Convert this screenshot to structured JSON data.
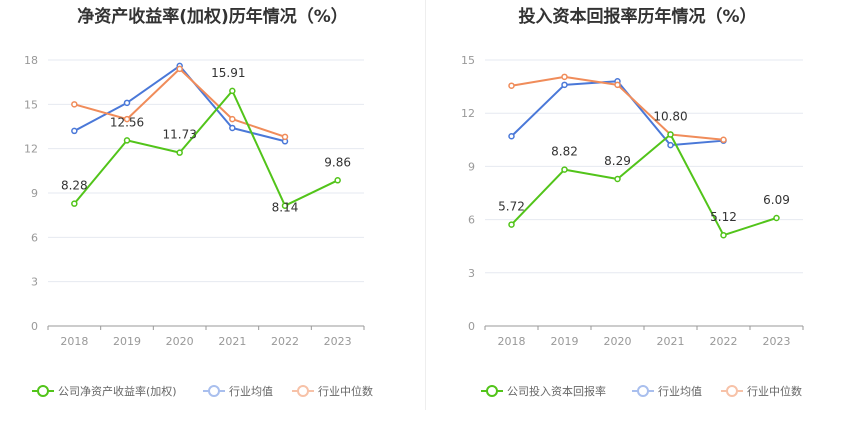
{
  "chart_data": [
    {
      "type": "line",
      "title": "净资产收益率(加权)历年情况（%）",
      "categories": [
        "2018",
        "2019",
        "2020",
        "2021",
        "2022",
        "2023"
      ],
      "ylim": [
        0,
        18
      ],
      "yticks": [
        0,
        3,
        6,
        9,
        12,
        15,
        18
      ],
      "grid": true,
      "legend_position": "bottom",
      "series": [
        {
          "name": "公司净资产收益率(加权)",
          "color": "#52c41a",
          "labels": true,
          "values": [
            8.28,
            12.56,
            11.73,
            15.91,
            8.14,
            9.86
          ],
          "value_labels": [
            "8.28",
            "12.56",
            "11.73",
            "15.91",
            "8.14",
            "9.86"
          ]
        },
        {
          "name": "行业均值",
          "color": "#4a78d8",
          "values": [
            13.2,
            15.1,
            17.6,
            13.4,
            12.5,
            null
          ]
        },
        {
          "name": "行业中位数",
          "color": "#f08c5a",
          "values": [
            15.0,
            14.0,
            17.4,
            14.0,
            12.8,
            null
          ]
        }
      ]
    },
    {
      "type": "line",
      "title": "投入资本回报率历年情况（%）",
      "categories": [
        "2018",
        "2019",
        "2020",
        "2021",
        "2022",
        "2023"
      ],
      "ylim": [
        0,
        15
      ],
      "yticks": [
        0,
        3,
        6,
        9,
        12,
        15
      ],
      "grid": true,
      "legend_position": "bottom",
      "series": [
        {
          "name": "公司投入资本回报率",
          "color": "#52c41a",
          "labels": true,
          "values": [
            5.72,
            8.82,
            8.29,
            10.8,
            5.12,
            6.09
          ],
          "value_labels": [
            "5.72",
            "8.82",
            "8.29",
            "10.80",
            "5.12",
            "6.09"
          ]
        },
        {
          "name": "行业均值",
          "color": "#4a78d8",
          "values": [
            10.7,
            13.6,
            13.8,
            10.2,
            10.45,
            null
          ]
        },
        {
          "name": "行业中位数",
          "color": "#f08c5a",
          "values": [
            13.55,
            14.05,
            13.6,
            10.8,
            10.5,
            null
          ]
        }
      ]
    }
  ]
}
